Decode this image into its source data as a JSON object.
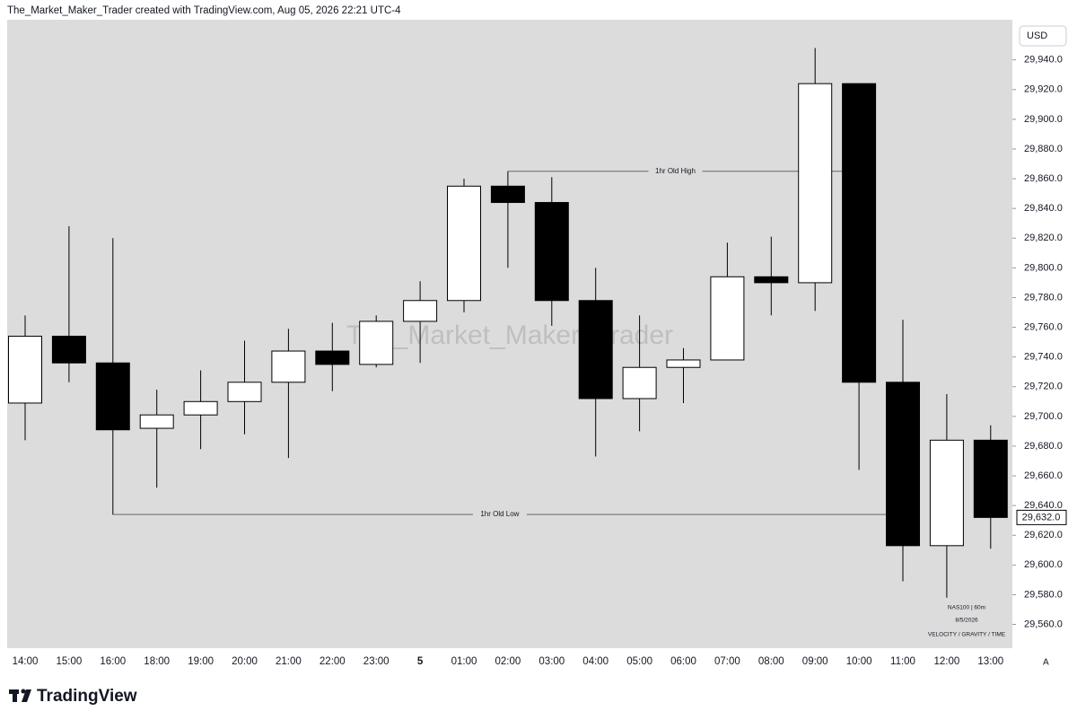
{
  "header": "The_Market_Maker_Trader created with TradingView.com, Aug 05, 2026 22:21 UTC-4",
  "footer": {
    "logo": "TradingView"
  },
  "chart_data": {
    "type": "candlestick",
    "currency": "USD",
    "watermark": "The_Market_Maker_Trader",
    "info": [
      "NAS100  |  60m",
      "8/5/2026",
      "VELOCITY / GRAVITY / TIME"
    ],
    "scale_mode": "A",
    "categories": [
      "14:00",
      "15:00",
      "16:00",
      "18:00",
      "19:00",
      "20:00",
      "21:00",
      "22:00",
      "23:00",
      "5",
      "01:00",
      "02:00",
      "03:00",
      "04:00",
      "05:00",
      "06:00",
      "07:00",
      "08:00",
      "09:00",
      "10:00",
      "11:00",
      "12:00",
      "13:00"
    ],
    "series": [
      {
        "up_color": "#ffffff",
        "down_color": "#000000",
        "open": [
          29709,
          29754,
          29736,
          29692,
          29701,
          29710,
          29723,
          29744,
          29735,
          29764,
          29778,
          29855,
          29844,
          29778,
          29712,
          29733,
          29738,
          29794,
          29790,
          29924,
          29723,
          29613,
          29684
        ],
        "high": [
          29768,
          29828,
          29820,
          29718,
          29731,
          29751,
          29759,
          29763,
          29768,
          29791,
          29860,
          29865,
          29861,
          29800,
          29768,
          29746,
          29817,
          29821,
          29948,
          29924,
          29765,
          29715,
          29694
        ],
        "low": [
          29684,
          29723,
          29634,
          29652,
          29678,
          29688,
          29672,
          29717,
          29733,
          29736,
          29770,
          29800,
          29761,
          29673,
          29690,
          29709,
          29738,
          29768,
          29771,
          29664,
          29589,
          29578,
          29611
        ],
        "close": [
          29754,
          29736,
          29691,
          29701,
          29710,
          29723,
          29744,
          29735,
          29764,
          29778,
          29855,
          29844,
          29778,
          29712,
          29733,
          29738,
          29794,
          29790,
          29924,
          29723,
          29613,
          29684,
          29632
        ]
      }
    ],
    "levels": [
      {
        "label": "1hr Old  High",
        "value": 29865,
        "from": "02:00",
        "to": "10:00"
      },
      {
        "label": "1hr Old  Low",
        "value": 29634,
        "from": "16:00",
        "to": "11:00"
      }
    ],
    "last_price": {
      "value": 29632,
      "label": "29,632.0"
    },
    "ylim": [
      29544,
      29967
    ],
    "yticks": [
      {
        "value": 29560,
        "label": "29,560.0"
      },
      {
        "value": 29580,
        "label": "29,580.0"
      },
      {
        "value": 29600,
        "label": "29,600.0"
      },
      {
        "value": 29620,
        "label": "29,620.0"
      },
      {
        "value": 29640,
        "label": "29,640.0"
      },
      {
        "value": 29660,
        "label": "29,660.0"
      },
      {
        "value": 29680,
        "label": "29,680.0"
      },
      {
        "value": 29700,
        "label": "29,700.0"
      },
      {
        "value": 29720,
        "label": "29,720.0"
      },
      {
        "value": 29740,
        "label": "29,740.0"
      },
      {
        "value": 29760,
        "label": "29,760.0"
      },
      {
        "value": 29780,
        "label": "29,780.0"
      },
      {
        "value": 29800,
        "label": "29,800.0"
      },
      {
        "value": 29820,
        "label": "29,820.0"
      },
      {
        "value": 29840,
        "label": "29,840.0"
      },
      {
        "value": 29860,
        "label": "29,860.0"
      },
      {
        "value": 29880,
        "label": "29,880.0"
      },
      {
        "value": 29900,
        "label": "29,900.0"
      },
      {
        "value": 29920,
        "label": "29,920.0"
      },
      {
        "value": 29940,
        "label": "29,940.0"
      }
    ]
  }
}
